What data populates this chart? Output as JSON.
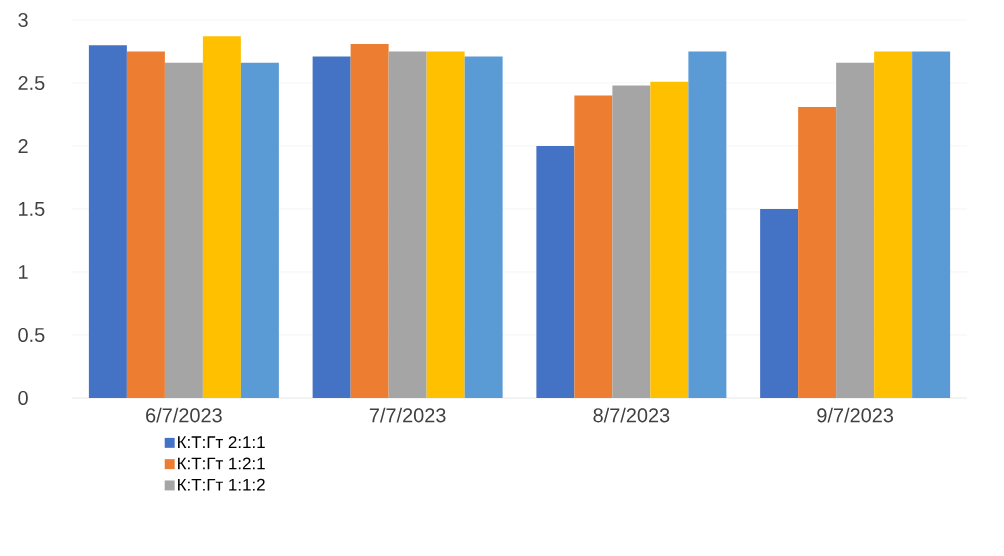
{
  "chart_data": {
    "type": "bar",
    "categories": [
      "6/7/2023",
      "7/7/2023",
      "8/7/2023",
      "9/7/2023"
    ],
    "series": [
      {
        "name": "К:Т:Гт 2:1:1",
        "color": "#4472c4",
        "values": [
          2.8,
          2.71,
          2.0,
          1.5
        ]
      },
      {
        "name": "К:Т:Гт 1:2:1",
        "color": "#ed7d31",
        "values": [
          2.75,
          2.81,
          2.4,
          2.31
        ]
      },
      {
        "name": "К:Т:Гт 1:1:2",
        "color": "#a5a5a5",
        "values": [
          2.66,
          2.75,
          2.48,
          2.66
        ]
      },
      {
        "color": "#ffc000",
        "values": [
          2.87,
          2.75,
          2.51,
          2.75
        ]
      },
      {
        "color": "#5b9bd5",
        "values": [
          2.66,
          2.71,
          2.75,
          2.75
        ]
      }
    ],
    "ylim": [
      0,
      3
    ],
    "yticks": [
      0,
      0.5,
      1,
      1.5,
      2,
      2.5,
      3
    ],
    "grid": "y",
    "legend": "bottom left"
  }
}
